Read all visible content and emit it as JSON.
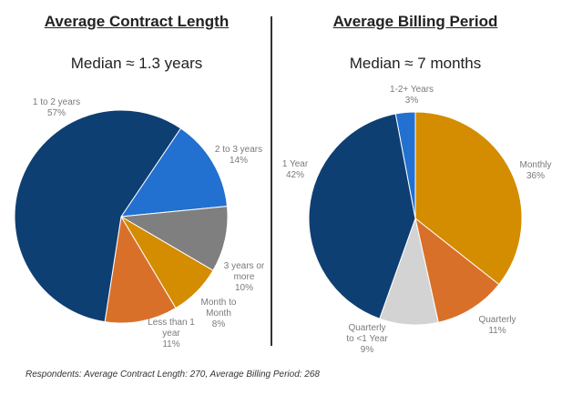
{
  "footnote": "Respondents: Average Contract Length: 270, Average Billing Period: 268",
  "chart_data": [
    {
      "type": "pie",
      "title": "Average Contract Length",
      "subtitle": "Median ≈ 1.3 years",
      "slices": [
        {
          "label": [
            "2 to 3 years"
          ],
          "value": 14,
          "pct": "14%",
          "color": "#2270d0"
        },
        {
          "label": [
            "3 years or",
            "more"
          ],
          "value": 10,
          "pct": "10%",
          "color": "#7f7f7f"
        },
        {
          "label": [
            "Month to",
            "Month"
          ],
          "value": 8,
          "pct": "8%",
          "color": "#d48c00"
        },
        {
          "label": [
            "Less than 1",
            "year"
          ],
          "value": 11,
          "pct": "11%",
          "color": "#d9702a"
        },
        {
          "label": [
            "1 to 2 years"
          ],
          "value": 57,
          "pct": "57%",
          "color": "#0e3f73"
        }
      ]
    },
    {
      "type": "pie",
      "title": "Average Billing Period",
      "subtitle": "Median ≈ 7 months",
      "slices": [
        {
          "label": [
            "Monthly"
          ],
          "value": 36,
          "pct": "36%",
          "color": "#d48c00"
        },
        {
          "label": [
            "Quarterly"
          ],
          "value": 11,
          "pct": "11%",
          "color": "#d9702a"
        },
        {
          "label": [
            "Quarterly",
            "to <1 Year"
          ],
          "value": 9,
          "pct": "9%",
          "color": "#d3d3d3"
        },
        {
          "label": [
            "1 Year"
          ],
          "value": 42,
          "pct": "42%",
          "color": "#0e3f73"
        },
        {
          "label": [
            "1-2+ Years"
          ],
          "value": 3,
          "pct": "3%",
          "color": "#2270d0"
        }
      ]
    }
  ]
}
